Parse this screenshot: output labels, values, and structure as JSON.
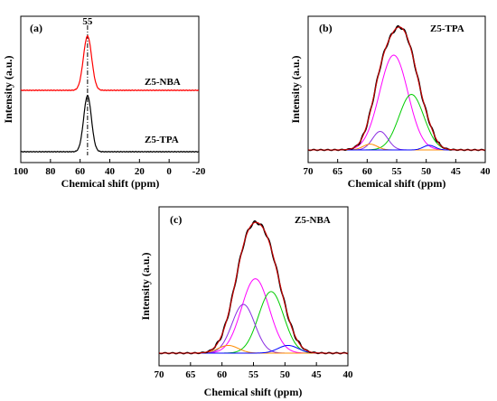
{
  "chart_data": [
    {
      "panel": "(a)",
      "type": "line",
      "xlabel": "Chemical shift (ppm)",
      "ylabel": "Intensity (a.u.)",
      "xlim": [
        100,
        -20
      ],
      "xticks": [
        100,
        80,
        60,
        40,
        20,
        0,
        -20
      ],
      "reference_line": {
        "x": 55,
        "label": "55",
        "style": "dash-dot"
      },
      "series": [
        {
          "name": "Z5-NBA",
          "color": "#ff0000",
          "peak_center": 55,
          "peak_width": 2.8,
          "peak_height": 0.62,
          "baseline": 0.0
        },
        {
          "name": "Z5-TPA",
          "color": "#000000",
          "peak_center": 55,
          "peak_width": 2.6,
          "peak_height": 0.62,
          "baseline": 0.0
        }
      ]
    },
    {
      "panel": "(b)",
      "title": "Z5-TPA",
      "type": "line",
      "xlabel": "Chemical shift (ppm)",
      "ylabel": "Intensity (a.u.)",
      "xlim": [
        70,
        40
      ],
      "xticks": [
        70,
        65,
        60,
        55,
        50,
        45,
        40
      ],
      "components": [
        {
          "color": "#ff00ff",
          "center": 55.5,
          "width": 2.4,
          "height": 0.82
        },
        {
          "color": "#00cc00",
          "center": 52.5,
          "width": 2.1,
          "height": 0.48
        },
        {
          "color": "#8a2be2",
          "center": 57.8,
          "width": 1.3,
          "height": 0.16
        },
        {
          "color": "#ff8c00",
          "center": 59.5,
          "width": 1.2,
          "height": 0.05
        },
        {
          "color": "#0000ff",
          "center": 49.5,
          "width": 1.0,
          "height": 0.04
        }
      ],
      "envelope_colors": [
        "#000000",
        "#cc0000"
      ]
    },
    {
      "panel": "(c)",
      "title": "Z5-NBA",
      "type": "line",
      "xlabel": "Chemical shift (ppm)",
      "ylabel": "Intensity (a.u.)",
      "xlim": [
        70,
        40
      ],
      "xticks": [
        70,
        65,
        60,
        55,
        50,
        45,
        40
      ],
      "components": [
        {
          "color": "#ff00ff",
          "center": 54.7,
          "width": 2.2,
          "height": 0.58
        },
        {
          "color": "#00cc00",
          "center": 52.2,
          "width": 2.0,
          "height": 0.48
        },
        {
          "color": "#8a2be2",
          "center": 56.6,
          "width": 1.8,
          "height": 0.38
        },
        {
          "color": "#ff8c00",
          "center": 59.0,
          "width": 1.6,
          "height": 0.06
        },
        {
          "color": "#0000ff",
          "center": 49.5,
          "width": 1.6,
          "height": 0.06
        }
      ],
      "envelope_colors": [
        "#000000",
        "#cc0000"
      ]
    }
  ]
}
